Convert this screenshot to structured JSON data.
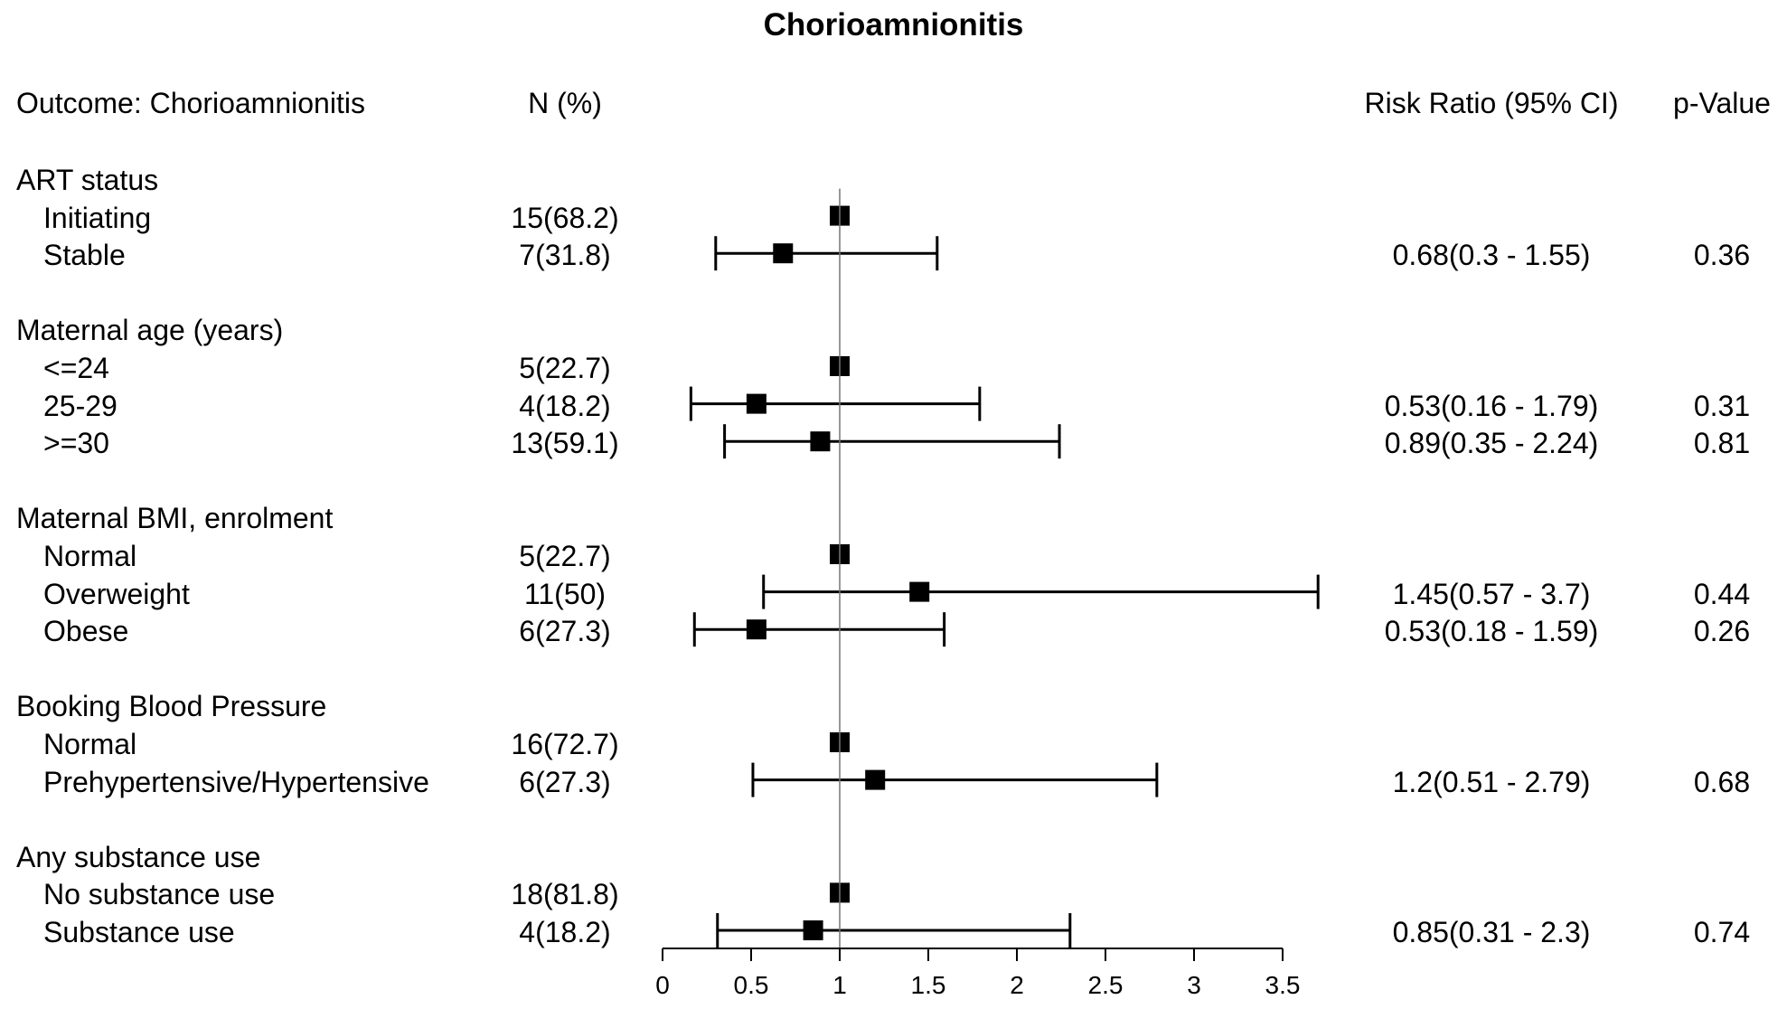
{
  "chart_data": {
    "type": "forest",
    "title": "Chorioamnionitis",
    "headers": {
      "outcome": "Outcome: Chorioamnionitis",
      "n": "N (%)",
      "rr": "Risk Ratio (95% CI)",
      "p": "p-Value"
    },
    "xlim": [
      0,
      3.5
    ],
    "x_ticks": [
      0,
      0.5,
      1,
      1.5,
      2,
      2.5,
      3,
      3.5
    ],
    "x_tick_labels": [
      "0",
      "0.5",
      "1",
      "1.5",
      "2",
      "2.5",
      "3",
      "3.5"
    ],
    "reference_line": 1,
    "groups": [
      {
        "name": "ART status",
        "rows": [
          {
            "label": "Initiating",
            "n": "15(68.2)",
            "rr": 1,
            "lo": null,
            "hi": null,
            "rr_text": "",
            "p": ""
          },
          {
            "label": "Stable",
            "n": "7(31.8)",
            "rr": 0.68,
            "lo": 0.3,
            "hi": 1.55,
            "rr_text": "0.68(0.3 - 1.55)",
            "p": "0.36"
          }
        ]
      },
      {
        "name": "Maternal age (years)",
        "rows": [
          {
            "label": "<=24",
            "n": "5(22.7)",
            "rr": 1,
            "lo": null,
            "hi": null,
            "rr_text": "",
            "p": ""
          },
          {
            "label": "25-29",
            "n": "4(18.2)",
            "rr": 0.53,
            "lo": 0.16,
            "hi": 1.79,
            "rr_text": "0.53(0.16 - 1.79)",
            "p": "0.31"
          },
          {
            "label": ">=30",
            "n": "13(59.1)",
            "rr": 0.89,
            "lo": 0.35,
            "hi": 2.24,
            "rr_text": "0.89(0.35 - 2.24)",
            "p": "0.81"
          }
        ]
      },
      {
        "name": "Maternal BMI, enrolment",
        "rows": [
          {
            "label": "Normal",
            "n": "5(22.7)",
            "rr": 1,
            "lo": null,
            "hi": null,
            "rr_text": "",
            "p": ""
          },
          {
            "label": "Overweight",
            "n": "11(50)",
            "rr": 1.45,
            "lo": 0.57,
            "hi": 3.7,
            "rr_text": "1.45(0.57 - 3.7)",
            "p": "0.44"
          },
          {
            "label": "Obese",
            "n": "6(27.3)",
            "rr": 0.53,
            "lo": 0.18,
            "hi": 1.59,
            "rr_text": "0.53(0.18 - 1.59)",
            "p": "0.26"
          }
        ]
      },
      {
        "name": "Booking Blood Pressure",
        "rows": [
          {
            "label": "Normal",
            "n": "16(72.7)",
            "rr": 1,
            "lo": null,
            "hi": null,
            "rr_text": "",
            "p": ""
          },
          {
            "label": "Prehypertensive/Hypertensive",
            "n": "6(27.3)",
            "rr": 1.2,
            "lo": 0.51,
            "hi": 2.79,
            "rr_text": "1.2(0.51 - 2.79)",
            "p": "0.68"
          }
        ]
      },
      {
        "name": "Any substance use",
        "rows": [
          {
            "label": "No substance use",
            "n": "18(81.8)",
            "rr": 1,
            "lo": null,
            "hi": null,
            "rr_text": "",
            "p": ""
          },
          {
            "label": "Substance use",
            "n": "4(18.2)",
            "rr": 0.85,
            "lo": 0.31,
            "hi": 2.3,
            "rr_text": "0.85(0.31 - 2.3)",
            "p": "0.74"
          }
        ]
      }
    ]
  }
}
